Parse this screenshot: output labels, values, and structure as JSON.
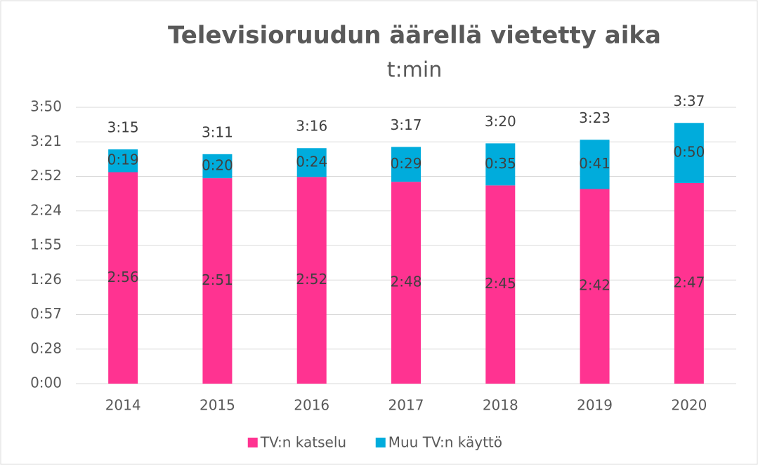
{
  "chart_data": {
    "type": "stacked_bar",
    "title": "Televisioruudun äärellä vietetty aika",
    "subtitle": "t:min",
    "categories": [
      "2014",
      "2015",
      "2016",
      "2017",
      "2018",
      "2019",
      "2020"
    ],
    "series": [
      {
        "name": "TV:n katselu",
        "color": "#ff3391",
        "values": [
          176,
          171,
          172,
          168,
          165,
          162,
          167
        ],
        "value_labels": [
          "2:56",
          "2:51",
          "2:52",
          "2:48",
          "2:45",
          "2:42",
          "2:47"
        ]
      },
      {
        "name": "Muu TV:n käyttö",
        "color": "#00acdc",
        "values": [
          19,
          20,
          24,
          29,
          35,
          41,
          50
        ],
        "value_labels": [
          "0:19",
          "0:20",
          "0:24",
          "0:29",
          "0:35",
          "0:41",
          "0:50"
        ]
      }
    ],
    "totals": [
      195,
      191,
      196,
      197,
      200,
      203,
      217
    ],
    "total_labels": [
      "3:15",
      "3:11",
      "3:16",
      "3:17",
      "3:20",
      "3:23",
      "3:37"
    ],
    "ylim": [
      0,
      230
    ],
    "yticks": [
      {
        "value": 0,
        "label": "0:00"
      },
      {
        "value": 28.75,
        "label": "0:28"
      },
      {
        "value": 57.5,
        "label": "0:57"
      },
      {
        "value": 86.25,
        "label": "1:26"
      },
      {
        "value": 115,
        "label": "1:55"
      },
      {
        "value": 143.75,
        "label": "2:24"
      },
      {
        "value": 172.5,
        "label": "2:52"
      },
      {
        "value": 201.25,
        "label": "3:21"
      },
      {
        "value": 230,
        "label": "3:50"
      }
    ],
    "grid": true,
    "legend": "bottom"
  }
}
